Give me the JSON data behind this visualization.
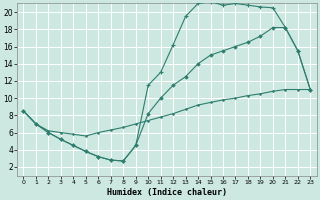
{
  "xlabel": "Humidex (Indice chaleur)",
  "xlim": [
    -0.5,
    23.5
  ],
  "ylim": [
    1,
    21
  ],
  "yticks": [
    2,
    4,
    6,
    8,
    10,
    12,
    14,
    16,
    18,
    20
  ],
  "xticks": [
    0,
    1,
    2,
    3,
    4,
    5,
    6,
    7,
    8,
    9,
    10,
    11,
    12,
    13,
    14,
    15,
    16,
    17,
    18,
    19,
    20,
    21,
    22,
    23
  ],
  "bg_color": "#cce8e0",
  "grid_color": "#ffffff",
  "line_color": "#2e7d6e",
  "line1_x": [
    0,
    1,
    2,
    3,
    4,
    5,
    6,
    7,
    8,
    9,
    10,
    11,
    12,
    13,
    14,
    15,
    16,
    17,
    18,
    19,
    20,
    21,
    22,
    23
  ],
  "line1_y": [
    8.5,
    7.0,
    6.0,
    5.2,
    4.5,
    3.8,
    3.2,
    2.8,
    2.7,
    4.5,
    11.5,
    13.0,
    16.2,
    19.5,
    21.0,
    21.2,
    20.8,
    21.0,
    20.8,
    20.6,
    20.5,
    18.2,
    15.5,
    11.0
  ],
  "line2_x": [
    0,
    1,
    2,
    3,
    4,
    5,
    6,
    7,
    8,
    9,
    10,
    11,
    12,
    13,
    14,
    15,
    16,
    17,
    18,
    19,
    20,
    21,
    22,
    23
  ],
  "line2_y": [
    8.5,
    7.0,
    6.0,
    5.2,
    4.5,
    3.8,
    3.2,
    2.8,
    2.7,
    4.5,
    8.2,
    10.0,
    11.5,
    12.5,
    14.0,
    15.0,
    15.5,
    16.0,
    16.5,
    17.2,
    18.2,
    18.2,
    15.5,
    11.0
  ],
  "line3_x": [
    0,
    1,
    2,
    3,
    4,
    5,
    6,
    7,
    8,
    9,
    10,
    11,
    12,
    13,
    14,
    15,
    16,
    17,
    18,
    19,
    20,
    21,
    22,
    23
  ],
  "line3_y": [
    8.5,
    7.0,
    6.2,
    6.0,
    5.8,
    5.6,
    6.0,
    6.3,
    6.6,
    7.0,
    7.4,
    7.8,
    8.2,
    8.7,
    9.2,
    9.5,
    9.8,
    10.0,
    10.3,
    10.5,
    10.8,
    11.0,
    11.0,
    11.0
  ]
}
